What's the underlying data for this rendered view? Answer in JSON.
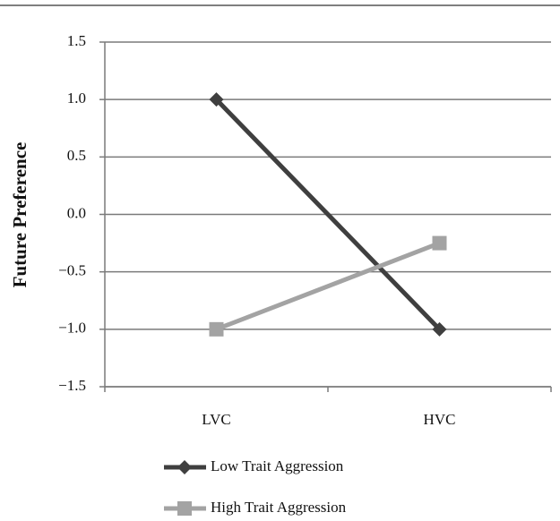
{
  "chart_data": {
    "type": "line",
    "y_label": "Future Preference",
    "categories": [
      "LVC",
      "HVC"
    ],
    "series": [
      {
        "name": "Low Trait Aggression",
        "color": "#3f3f3f",
        "marker": "diamond",
        "values": [
          1.0,
          -1.0
        ]
      },
      {
        "name": "High Trait Aggression",
        "color": "#a3a3a3",
        "marker": "square",
        "values": [
          -1.0,
          -0.25
        ]
      }
    ],
    "ylim": [
      -1.5,
      1.5
    ],
    "yticks": [
      {
        "value": -1.5,
        "label": "−1.5"
      },
      {
        "value": -1,
        "label": "−1.0"
      },
      {
        "value": -0.5,
        "label": "−0.5"
      },
      {
        "value": 0,
        "label": "0.0"
      },
      0.5,
      {
        "value": 1,
        "label": "1.0"
      },
      1.5
    ],
    "grid": true,
    "legend": "bottom"
  }
}
